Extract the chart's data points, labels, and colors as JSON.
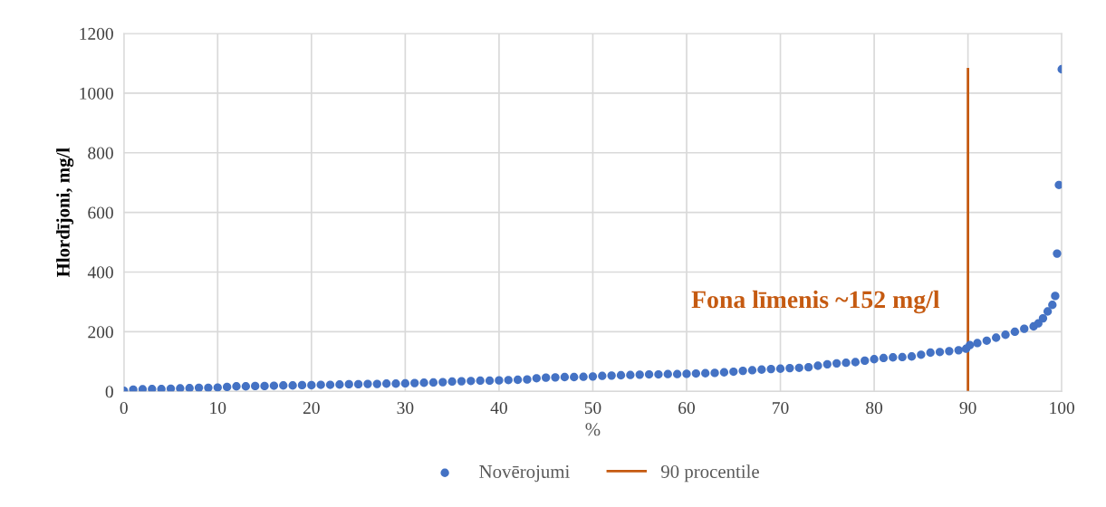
{
  "chart_data": {
    "type": "scatter",
    "xlabel": "%",
    "ylabel": "Hlordījoni, mg/l",
    "annotations": [
      "Fona līmenis ~152 mg/l"
    ],
    "xlim": [
      0,
      100
    ],
    "xticks": [
      0,
      10,
      20,
      30,
      40,
      50,
      60,
      70,
      80,
      90,
      100
    ],
    "ylim": [
      0,
      1200
    ],
    "yticks": [
      0,
      200,
      400,
      600,
      800,
      1000,
      1200
    ],
    "grid": true,
    "legend": "bottom",
    "series": [
      {
        "name": "Novērojumi",
        "marker": "circle",
        "color": "#4472c4",
        "x": [
          0,
          1,
          2,
          3,
          4,
          5,
          6,
          7,
          8,
          9,
          10,
          11,
          12,
          13,
          14,
          15,
          16,
          17,
          18,
          19,
          20,
          21,
          22,
          23,
          24,
          25,
          26,
          27,
          28,
          29,
          30,
          31,
          32,
          33,
          34,
          35,
          36,
          37,
          38,
          39,
          40,
          41,
          42,
          43,
          44,
          45,
          46,
          47,
          48,
          49,
          50,
          51,
          52,
          53,
          54,
          55,
          56,
          57,
          58,
          59,
          60,
          61,
          62,
          63,
          64,
          65,
          66,
          67,
          68,
          69,
          70,
          71,
          72,
          73,
          74,
          75,
          76,
          77,
          78,
          79,
          80,
          81,
          82,
          83,
          84,
          85,
          86,
          87,
          88,
          89,
          89.8,
          90.2,
          91,
          92,
          93,
          94,
          95,
          96,
          97,
          97.5,
          98,
          98.5,
          99,
          99.3,
          99.5,
          99.7,
          100
        ],
        "values": [
          2,
          6,
          7,
          8,
          8,
          9,
          10,
          11,
          12,
          12,
          13,
          15,
          17,
          17,
          18,
          18,
          19,
          20,
          20,
          21,
          21,
          22,
          22,
          23,
          24,
          24,
          25,
          25,
          26,
          26,
          27,
          28,
          29,
          30,
          31,
          33,
          34,
          35,
          36,
          36,
          37,
          38,
          39,
          40,
          44,
          46,
          47,
          48,
          48,
          49,
          50,
          52,
          53,
          54,
          55,
          56,
          57,
          57,
          58,
          58,
          59,
          60,
          61,
          62,
          64,
          66,
          69,
          71,
          73,
          75,
          76,
          78,
          79,
          81,
          86,
          91,
          94,
          96,
          98,
          103,
          108,
          112,
          114,
          115,
          117,
          123,
          130,
          132,
          135,
          138,
          143,
          155,
          162,
          170,
          180,
          190,
          200,
          210,
          218,
          228,
          245,
          268,
          290,
          320,
          462,
          692,
          1080
        ]
      },
      {
        "name": "90 procentile",
        "type": "line",
        "color": "#c55a11",
        "x": [
          90,
          90
        ],
        "values": [
          0,
          1080
        ]
      }
    ]
  }
}
